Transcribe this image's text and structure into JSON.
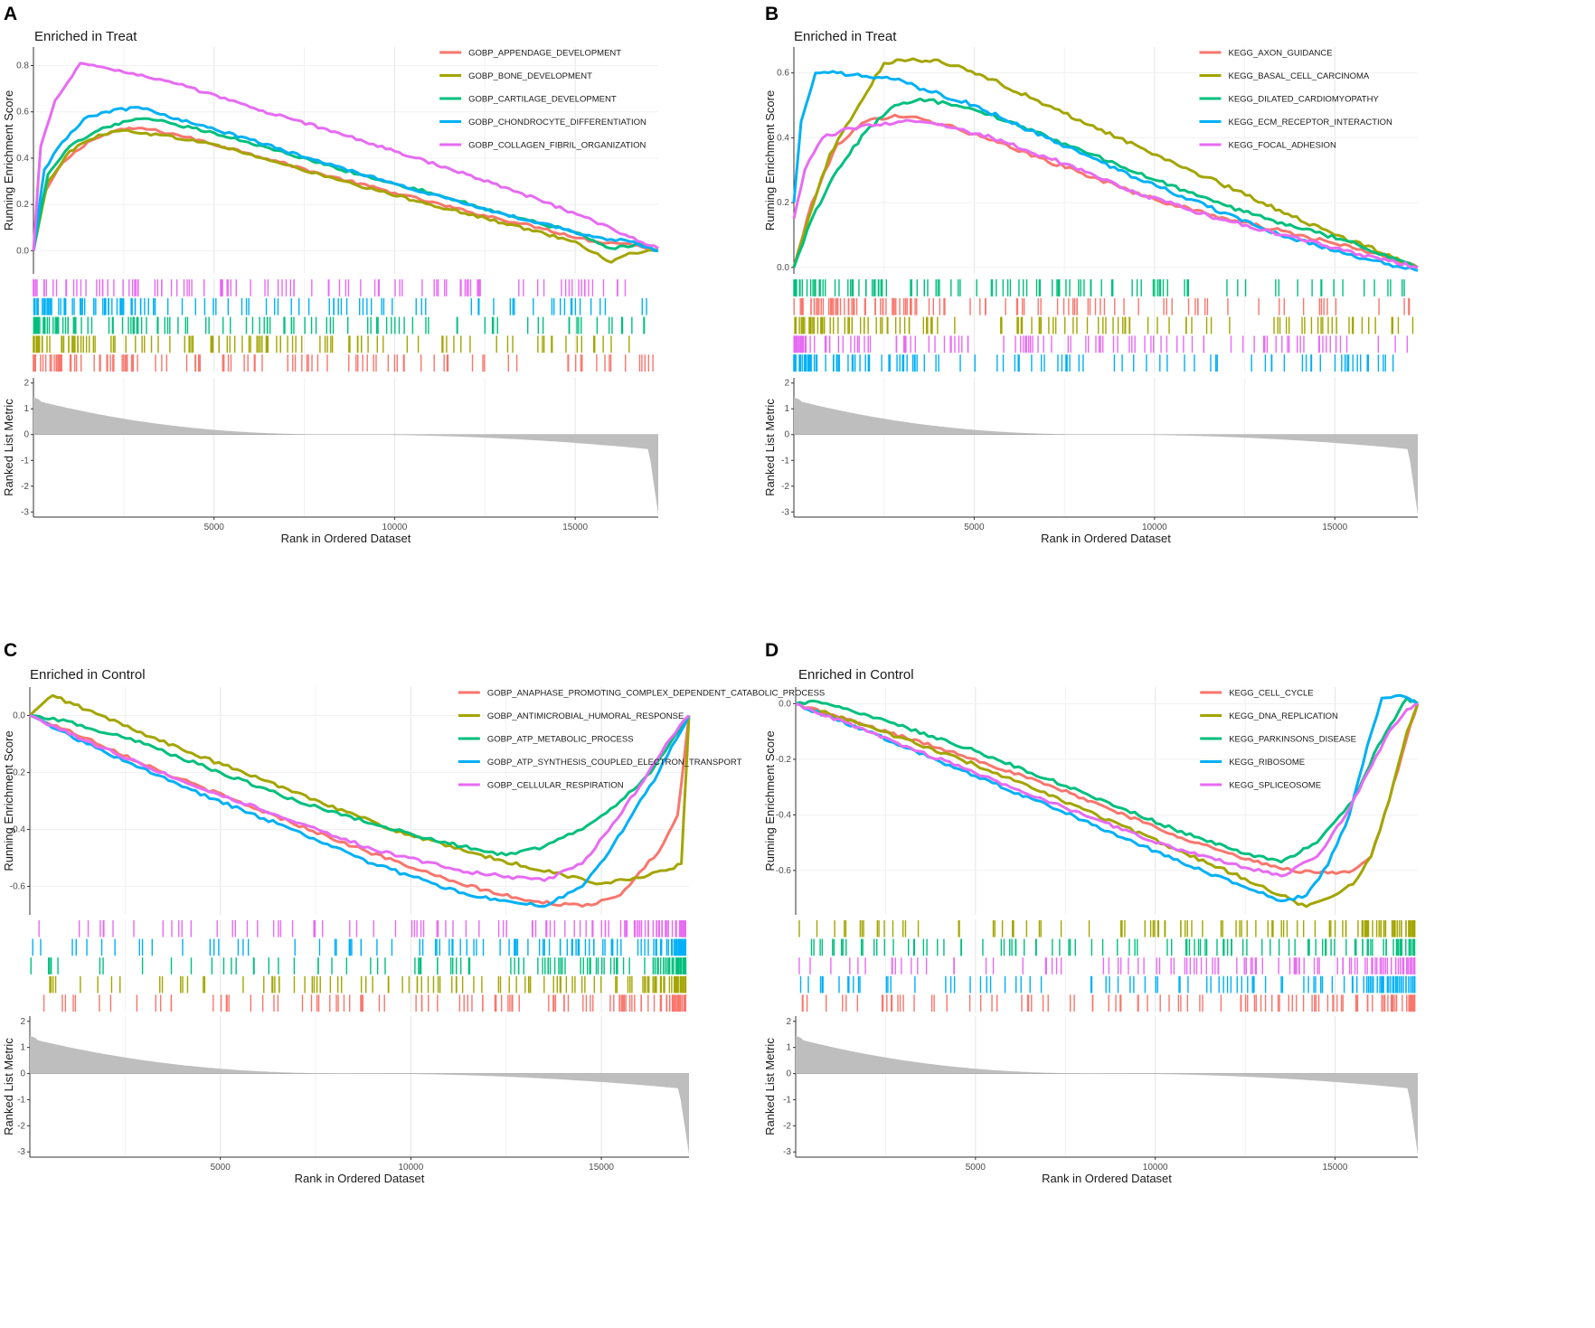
{
  "figure": {
    "xlabel": "Rank in Ordered Dataset",
    "ylabel_top": "Running Enrichment Score",
    "ylabel_bottom": "Ranked List Metric",
    "x_ticks": [
      5000,
      10000,
      15000
    ],
    "n_genes": 17300,
    "metric_ticks": [
      2,
      1,
      0,
      -1,
      -2,
      -3
    ],
    "metric_range": [
      -3.2,
      2.2
    ]
  },
  "chart_data": [
    {
      "type": "line",
      "panel": "A",
      "title": "Enriched in Treat",
      "xlabel": "Rank in Ordered Dataset",
      "ylabel": "Running Enrichment Score",
      "ylim": [
        -0.1,
        0.88
      ],
      "yticks": [
        "0.0",
        "0.2",
        "0.4",
        "0.6",
        "0.8"
      ],
      "legend_position": "top-right",
      "series": [
        {
          "name": "GOBP_APPENDAGE_DEVELOPMENT",
          "color": "#F8766D",
          "x": [
            0,
            300,
            800,
            1500,
            2300,
            3000,
            4000,
            6000,
            8000,
            10000,
            12000,
            14000,
            15500,
            16500,
            17300
          ],
          "y": [
            0.0,
            0.25,
            0.38,
            0.47,
            0.52,
            0.53,
            0.5,
            0.42,
            0.33,
            0.25,
            0.17,
            0.1,
            0.04,
            0.03,
            0.0
          ]
        },
        {
          "name": "GOBP_BONE_DEVELOPMENT",
          "color": "#A3A500",
          "x": [
            0,
            400,
            1000,
            1800,
            2500,
            3500,
            5000,
            7000,
            9000,
            11000,
            13000,
            15000,
            16000,
            16500,
            17300
          ],
          "y": [
            0.0,
            0.3,
            0.43,
            0.5,
            0.52,
            0.5,
            0.46,
            0.37,
            0.28,
            0.2,
            0.12,
            0.04,
            -0.05,
            -0.01,
            0.0
          ]
        },
        {
          "name": "GOBP_CARTILAGE_DEVELOPMENT",
          "color": "#00BF7D",
          "x": [
            0,
            400,
            1000,
            1800,
            2600,
            3200,
            5000,
            7000,
            9000,
            11000,
            13000,
            15000,
            16000,
            16800,
            17300
          ],
          "y": [
            0.0,
            0.33,
            0.45,
            0.52,
            0.56,
            0.57,
            0.51,
            0.42,
            0.33,
            0.25,
            0.16,
            0.08,
            0.01,
            0.03,
            0.0
          ]
        },
        {
          "name": "GOBP_CHONDROCYTE_DIFFERENTIATION",
          "color": "#00B0F6",
          "x": [
            0,
            300,
            800,
            1400,
            2000,
            2900,
            4000,
            6000,
            8000,
            10000,
            12000,
            14000,
            15500,
            16500,
            17300
          ],
          "y": [
            0.0,
            0.35,
            0.47,
            0.57,
            0.6,
            0.62,
            0.57,
            0.48,
            0.38,
            0.29,
            0.2,
            0.12,
            0.06,
            0.04,
            0.0
          ]
        },
        {
          "name": "GOBP_COLLAGEN_FIBRIL_ORGANIZATION",
          "color": "#E76BF3",
          "x": [
            0,
            200,
            600,
            1300,
            2000,
            3000,
            4000,
            6000,
            8000,
            10000,
            12000,
            14000,
            15500,
            16500,
            17300
          ],
          "y": [
            0.0,
            0.45,
            0.65,
            0.81,
            0.79,
            0.76,
            0.72,
            0.62,
            0.53,
            0.43,
            0.33,
            0.22,
            0.13,
            0.06,
            0.01
          ]
        }
      ]
    },
    {
      "type": "line",
      "panel": "B",
      "title": "Enriched in Treat",
      "xlabel": "Rank in Ordered Dataset",
      "ylabel": "Running Enrichment Score",
      "ylim": [
        -0.02,
        0.68
      ],
      "yticks": [
        "0.0",
        "0.2",
        "0.4",
        "0.6"
      ],
      "legend_position": "top-right",
      "series": [
        {
          "name": "KEGG_AXON_GUIDANCE",
          "color": "#F8766D",
          "x": [
            0,
            500,
            1200,
            2000,
            2800,
            3500,
            4500,
            6000,
            8000,
            10000,
            12000,
            14000,
            15500,
            16500,
            17300
          ],
          "y": [
            0.0,
            0.2,
            0.38,
            0.45,
            0.47,
            0.46,
            0.43,
            0.37,
            0.29,
            0.21,
            0.15,
            0.1,
            0.06,
            0.03,
            0.0
          ]
        },
        {
          "name": "KEGG_BASAL_CELL_CARCINOMA",
          "color": "#A3A500",
          "x": [
            0,
            400,
            1000,
            1800,
            2500,
            3200,
            4000,
            5500,
            7000,
            9000,
            11000,
            13000,
            15000,
            16500,
            17300
          ],
          "y": [
            0.0,
            0.15,
            0.35,
            0.5,
            0.63,
            0.64,
            0.64,
            0.58,
            0.5,
            0.4,
            0.3,
            0.2,
            0.1,
            0.04,
            0.0
          ]
        },
        {
          "name": "KEGG_DILATED_CARDIOMYOPATHY",
          "color": "#00BF7D",
          "x": [
            0,
            500,
            1200,
            2000,
            2800,
            3500,
            4500,
            6000,
            8000,
            10000,
            12000,
            14000,
            15500,
            16500,
            17300
          ],
          "y": [
            0.0,
            0.15,
            0.3,
            0.42,
            0.5,
            0.52,
            0.5,
            0.45,
            0.36,
            0.27,
            0.19,
            0.12,
            0.08,
            0.03,
            0.0
          ]
        },
        {
          "name": "KEGG_ECM_RECEPTOR_INTERACTION",
          "color": "#00B0F6",
          "x": [
            0,
            200,
            600,
            1200,
            2000,
            2800,
            3600,
            5000,
            7000,
            9000,
            11000,
            13000,
            15000,
            16500,
            17300
          ],
          "y": [
            0.2,
            0.45,
            0.6,
            0.6,
            0.59,
            0.58,
            0.55,
            0.5,
            0.4,
            0.3,
            0.21,
            0.12,
            0.05,
            0.01,
            -0.01
          ]
        },
        {
          "name": "KEGG_FOCAL_ADHESION",
          "color": "#E76BF3",
          "x": [
            0,
            300,
            800,
            1500,
            2300,
            3000,
            4000,
            5500,
            7500,
            9500,
            11500,
            13500,
            15000,
            16500,
            17300
          ],
          "y": [
            0.15,
            0.3,
            0.4,
            0.43,
            0.44,
            0.45,
            0.44,
            0.4,
            0.32,
            0.23,
            0.16,
            0.1,
            0.06,
            0.02,
            0.0
          ]
        }
      ]
    },
    {
      "type": "line",
      "panel": "C",
      "title": "Enriched in Control",
      "xlabel": "Rank in Ordered Dataset",
      "ylabel": "Running Enrichment Score",
      "ylim": [
        -0.7,
        0.1
      ],
      "yticks": [
        "0.0",
        "-0.2",
        "-0.4",
        "-0.6"
      ],
      "legend_position": "top-right",
      "series": [
        {
          "name": "GOBP_ANAPHASE_PROMOTING_COMPLEX_DEPENDENT_CATABOLIC_PROCESS",
          "color": "#F8766D",
          "x": [
            0,
            1500,
            3500,
            6000,
            8500,
            11000,
            13000,
            14500,
            15500,
            16000,
            16500,
            17000,
            17300
          ],
          "y": [
            0.0,
            -0.08,
            -0.2,
            -0.33,
            -0.46,
            -0.58,
            -0.65,
            -0.67,
            -0.63,
            -0.55,
            -0.48,
            -0.35,
            0.0
          ]
        },
        {
          "name": "GOBP_ANTIMICROBIAL_HUMORAL_RESPONSE",
          "color": "#A3A500",
          "x": [
            0,
            600,
            1500,
            4000,
            7000,
            9500,
            11500,
            13000,
            14000,
            15000,
            16000,
            16800,
            17100,
            17300
          ],
          "y": [
            0.0,
            0.07,
            0.02,
            -0.12,
            -0.27,
            -0.4,
            -0.48,
            -0.53,
            -0.56,
            -0.59,
            -0.57,
            -0.54,
            -0.52,
            0.0
          ]
        },
        {
          "name": "GOBP_ATP_METABOLIC_PROCESS",
          "color": "#00BF7D",
          "x": [
            0,
            1000,
            3000,
            5000,
            7000,
            9000,
            11000,
            12500,
            13500,
            14500,
            15500,
            16300,
            17300
          ],
          "y": [
            0.0,
            -0.02,
            -0.1,
            -0.2,
            -0.3,
            -0.38,
            -0.45,
            -0.49,
            -0.46,
            -0.4,
            -0.3,
            -0.2,
            0.0
          ]
        },
        {
          "name": "GOBP_ATP_SYNTHESIS_COUPLED_ELECTRON_TRANSPORT",
          "color": "#00B0F6",
          "x": [
            0,
            1500,
            4000,
            6500,
            9000,
            11500,
            13500,
            14500,
            15200,
            15800,
            16500,
            17300
          ],
          "y": [
            0.0,
            -0.1,
            -0.25,
            -0.38,
            -0.52,
            -0.63,
            -0.67,
            -0.6,
            -0.48,
            -0.35,
            -0.2,
            0.0
          ]
        },
        {
          "name": "GOBP_CELLULAR_RESPIRATION",
          "color": "#E76BF3",
          "x": [
            0,
            1500,
            4000,
            6500,
            9000,
            11500,
            13500,
            14500,
            15300,
            16000,
            16700,
            17300
          ],
          "y": [
            0.0,
            -0.09,
            -0.23,
            -0.35,
            -0.47,
            -0.55,
            -0.58,
            -0.52,
            -0.38,
            -0.25,
            -0.1,
            0.0
          ]
        }
      ]
    },
    {
      "type": "line",
      "panel": "D",
      "title": "Enriched in Control",
      "xlabel": "Rank in Ordered Dataset",
      "ylabel": "Running Enrichment Score",
      "ylim": [
        -0.76,
        0.06
      ],
      "yticks": [
        "0.0",
        "-0.2",
        "-0.4",
        "-0.6"
      ],
      "legend_position": "top-right",
      "series": [
        {
          "name": "KEGG_CELL_CYCLE",
          "color": "#F8766D",
          "x": [
            0,
            2000,
            5000,
            8000,
            10500,
            12500,
            13800,
            14800,
            15500,
            16000,
            16500,
            17000,
            17300
          ],
          "y": [
            0.0,
            -0.08,
            -0.2,
            -0.34,
            -0.47,
            -0.56,
            -0.6,
            -0.61,
            -0.6,
            -0.55,
            -0.35,
            -0.12,
            0.0
          ]
        },
        {
          "name": "KEGG_DNA_REPLICATION",
          "color": "#A3A500",
          "x": [
            0,
            2000,
            5000,
            8000,
            10500,
            12500,
            13500,
            14200,
            14800,
            15500,
            16000,
            16500,
            17000,
            17300
          ],
          "y": [
            0.0,
            -0.08,
            -0.22,
            -0.38,
            -0.52,
            -0.63,
            -0.69,
            -0.73,
            -0.7,
            -0.65,
            -0.55,
            -0.35,
            -0.1,
            0.0
          ]
        },
        {
          "name": "KEGG_PARKINSONS_DISEASE",
          "color": "#00BF7D",
          "x": [
            0,
            500,
            2500,
            5000,
            8000,
            10500,
            12500,
            13500,
            14500,
            15500,
            16200,
            17000,
            17300
          ],
          "y": [
            0.0,
            0.01,
            -0.06,
            -0.17,
            -0.32,
            -0.45,
            -0.54,
            -0.57,
            -0.5,
            -0.35,
            -0.15,
            0.02,
            0.0
          ]
        },
        {
          "name": "KEGG_RIBOSOME",
          "color": "#00B0F6",
          "x": [
            0,
            2000,
            5000,
            8000,
            10500,
            12500,
            13500,
            14200,
            14800,
            15400,
            15900,
            16300,
            16800,
            17300
          ],
          "y": [
            0.0,
            -0.1,
            -0.26,
            -0.42,
            -0.56,
            -0.66,
            -0.71,
            -0.69,
            -0.58,
            -0.4,
            -0.15,
            0.02,
            0.03,
            0.0
          ]
        },
        {
          "name": "KEGG_SPLICEOSOME",
          "color": "#E76BF3",
          "x": [
            0,
            2000,
            5000,
            8000,
            10500,
            12500,
            13500,
            14500,
            15300,
            15900,
            16500,
            17000,
            17300
          ],
          "y": [
            0.0,
            -0.1,
            -0.25,
            -0.4,
            -0.52,
            -0.59,
            -0.62,
            -0.55,
            -0.4,
            -0.25,
            -0.1,
            -0.02,
            0.0
          ]
        }
      ]
    }
  ]
}
